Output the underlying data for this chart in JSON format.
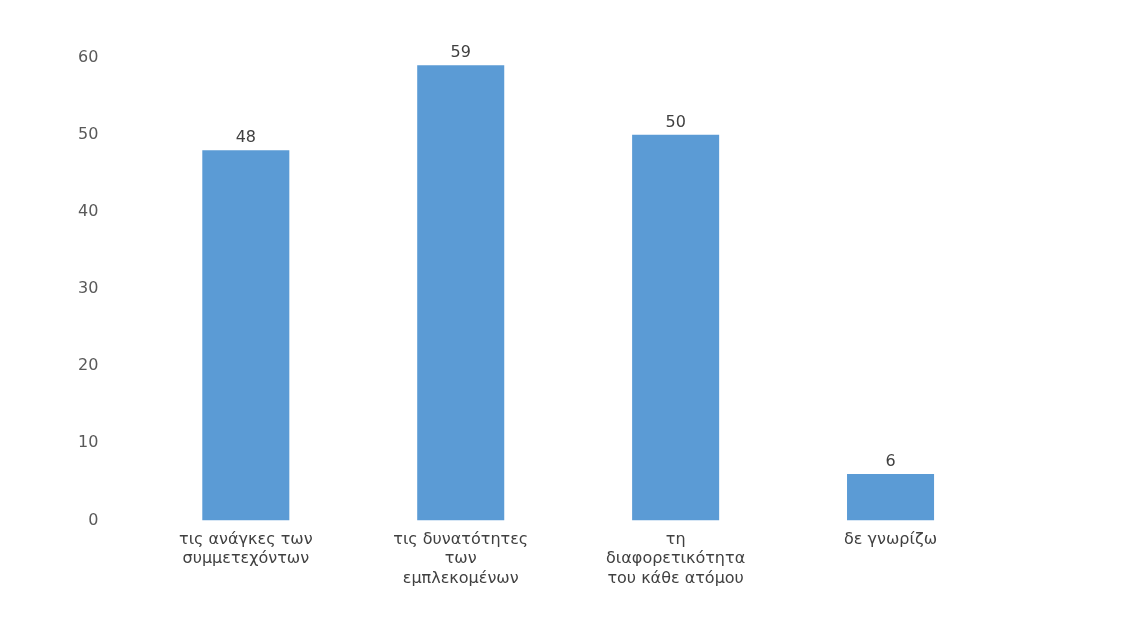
{
  "chart_data": {
    "type": "bar",
    "categories": [
      "τις ανάγκες των συμμετεχόντων",
      "τις δυνατότητες των εμπλεκομένων",
      "τη διαφορετικότητα του κάθε ατόμου",
      "δε γνωρίζω"
    ],
    "values": [
      48,
      59,
      50,
      6
    ],
    "color": "#5b9bd5",
    "ylim": [
      0,
      60
    ],
    "yticks": [
      0,
      10,
      20,
      30,
      40,
      50,
      60
    ],
    "grid": false,
    "legend": false,
    "data_labels": true
  }
}
